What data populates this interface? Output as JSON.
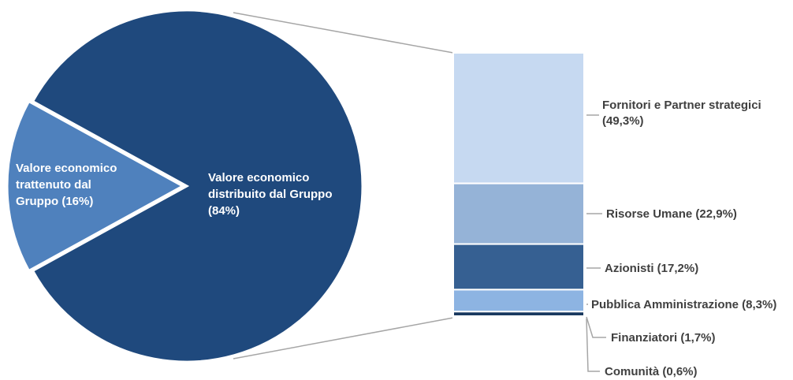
{
  "chart_data": {
    "type": "bar-of-pie",
    "pie": {
      "slices": [
        {
          "name": "Valore economico distribuito dal Gruppo",
          "value": 84,
          "color": "#1f497d",
          "label_lines": [
            "Valore economico",
            "distribuito dal Gruppo",
            "(84%)"
          ]
        },
        {
          "name": "Valore economico trattenuto dal Gruppo",
          "value": 16,
          "color": "#4f81bd",
          "label_lines": [
            "Valore economico",
            "trattenuto dal",
            "Gruppo (16%)"
          ]
        }
      ]
    },
    "bar": {
      "segments": [
        {
          "name": "Fornitori e Partner strategici",
          "value": 49.3,
          "color": "#c6d9f1",
          "label_lines": [
            "Fornitori e Partner strategici",
            "(49,3%)"
          ]
        },
        {
          "name": "Risorse Umane",
          "value": 22.9,
          "color": "#95b3d7",
          "label_lines": [
            "Risorse Umane (22,9%)"
          ]
        },
        {
          "name": "Azionisti",
          "value": 17.2,
          "color": "#366092",
          "label_lines": [
            "Azionisti (17,2%)"
          ]
        },
        {
          "name": "Pubblica Amministrazione",
          "value": 8.3,
          "color": "#8db4e2",
          "label_lines": [
            "Pubblica Amministrazione (8,3%)"
          ]
        },
        {
          "name": "Finanziatori",
          "value": 1.7,
          "color": "#17375e",
          "label_lines": [
            "Finanziatori (1,7%)"
          ]
        },
        {
          "name": "Comunità",
          "value": 0.6,
          "color": "#4f81bd",
          "label_lines": [
            "Comunità (0,6%)"
          ]
        }
      ]
    },
    "separator_color": "#ffffff",
    "leader_color": "#a6a6a6",
    "legend": "none"
  }
}
